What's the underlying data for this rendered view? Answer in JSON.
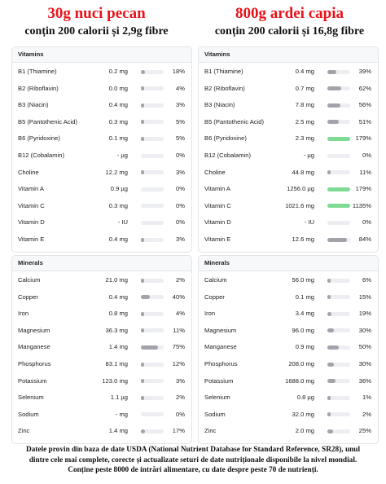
{
  "columns": [
    {
      "title": "30g nuci pecan",
      "subtitle": "conțin 200 calorii și 2,9g fibre",
      "sections": [
        {
          "title": "Vitamins",
          "rows": [
            {
              "name": "B1 (Thiamine)",
              "amount": "0.2 mg",
              "pct": 18,
              "pct_label": "18%"
            },
            {
              "name": "B2 (Riboflavin)",
              "amount": "0.0 mg",
              "pct": 4,
              "pct_label": "4%"
            },
            {
              "name": "B3 (Niacin)",
              "amount": "0.4 mg",
              "pct": 3,
              "pct_label": "3%"
            },
            {
              "name": "B5 (Pantothenic Acid)",
              "amount": "0.3 mg",
              "pct": 5,
              "pct_label": "5%"
            },
            {
              "name": "B6 (Pyridoxine)",
              "amount": "0.1 mg",
              "pct": 5,
              "pct_label": "5%"
            },
            {
              "name": "B12 (Cobalamin)",
              "amount": "- µg",
              "pct": 0,
              "pct_label": "0%"
            },
            {
              "name": "Choline",
              "amount": "12.2 mg",
              "pct": 3,
              "pct_label": "3%"
            },
            {
              "name": "Vitamin A",
              "amount": "0.9 µg",
              "pct": 0,
              "pct_label": "0%"
            },
            {
              "name": "Vitamin C",
              "amount": "0.3 mg",
              "pct": 0,
              "pct_label": "0%"
            },
            {
              "name": "Vitamin D",
              "amount": "- IU",
              "pct": 0,
              "pct_label": "0%"
            },
            {
              "name": "Vitamin E",
              "amount": "0.4 mg",
              "pct": 3,
              "pct_label": "3%"
            }
          ]
        },
        {
          "title": "Minerals",
          "rows": [
            {
              "name": "Calcium",
              "amount": "21.0 mg",
              "pct": 2,
              "pct_label": "2%"
            },
            {
              "name": "Copper",
              "amount": "0.4 mg",
              "pct": 40,
              "pct_label": "40%"
            },
            {
              "name": "Iron",
              "amount": "0.8 mg",
              "pct": 4,
              "pct_label": "4%"
            },
            {
              "name": "Magnesium",
              "amount": "36.3 mg",
              "pct": 11,
              "pct_label": "11%"
            },
            {
              "name": "Manganese",
              "amount": "1.4 mg",
              "pct": 75,
              "pct_label": "75%"
            },
            {
              "name": "Phosphorus",
              "amount": "83.1 mg",
              "pct": 12,
              "pct_label": "12%"
            },
            {
              "name": "Potassium",
              "amount": "123.0 mg",
              "pct": 3,
              "pct_label": "3%"
            },
            {
              "name": "Selenium",
              "amount": "1.1 µg",
              "pct": 2,
              "pct_label": "2%"
            },
            {
              "name": "Sodium",
              "amount": "- mg",
              "pct": 0,
              "pct_label": "0%"
            },
            {
              "name": "Zinc",
              "amount": "1.4 mg",
              "pct": 17,
              "pct_label": "17%"
            }
          ]
        }
      ]
    },
    {
      "title": "800g ardei capia",
      "subtitle": "conțin 200 calorii și 16,8g fibre",
      "sections": [
        {
          "title": "Vitamins",
          "rows": [
            {
              "name": "B1 (Thiamine)",
              "amount": "0.4 mg",
              "pct": 39,
              "pct_label": "39%"
            },
            {
              "name": "B2 (Riboflavin)",
              "amount": "0.7 mg",
              "pct": 62,
              "pct_label": "62%"
            },
            {
              "name": "B3 (Niacin)",
              "amount": "7.8 mg",
              "pct": 56,
              "pct_label": "56%"
            },
            {
              "name": "B5 (Pantothenic Acid)",
              "amount": "2.5 mg",
              "pct": 51,
              "pct_label": "51%"
            },
            {
              "name": "B6 (Pyridoxine)",
              "amount": "2.3 mg",
              "pct": 179,
              "pct_label": "179%"
            },
            {
              "name": "B12 (Cobalamin)",
              "amount": "- µg",
              "pct": 0,
              "pct_label": "0%"
            },
            {
              "name": "Choline",
              "amount": "44.8 mg",
              "pct": 11,
              "pct_label": "11%"
            },
            {
              "name": "Vitamin A",
              "amount": "1256.0 µg",
              "pct": 179,
              "pct_label": "179%"
            },
            {
              "name": "Vitamin C",
              "amount": "1021.6 mg",
              "pct": 1135,
              "pct_label": "1135%"
            },
            {
              "name": "Vitamin D",
              "amount": "- IU",
              "pct": 0,
              "pct_label": "0%"
            },
            {
              "name": "Vitamin E",
              "amount": "12.6 mg",
              "pct": 84,
              "pct_label": "84%"
            }
          ]
        },
        {
          "title": "Minerals",
          "rows": [
            {
              "name": "Calcium",
              "amount": "56.0 mg",
              "pct": 6,
              "pct_label": "6%"
            },
            {
              "name": "Copper",
              "amount": "0.1 mg",
              "pct": 15,
              "pct_label": "15%"
            },
            {
              "name": "Iron",
              "amount": "3.4 mg",
              "pct": 19,
              "pct_label": "19%"
            },
            {
              "name": "Magnesium",
              "amount": "96.0 mg",
              "pct": 30,
              "pct_label": "30%"
            },
            {
              "name": "Manganese",
              "amount": "0.9 mg",
              "pct": 50,
              "pct_label": "50%"
            },
            {
              "name": "Phosphorus",
              "amount": "208.0 mg",
              "pct": 30,
              "pct_label": "30%"
            },
            {
              "name": "Potassium",
              "amount": "1688.0 mg",
              "pct": 36,
              "pct_label": "36%"
            },
            {
              "name": "Selenium",
              "amount": "0.8 µg",
              "pct": 1,
              "pct_label": "1%"
            },
            {
              "name": "Sodium",
              "amount": "32.0 mg",
              "pct": 2,
              "pct_label": "2%"
            },
            {
              "name": "Zinc",
              "amount": "2.0 mg",
              "pct": 25,
              "pct_label": "25%"
            }
          ]
        }
      ]
    }
  ],
  "bar_color": "#a3a3ab",
  "over_color": "#7ddb93",
  "footer": [
    "Datele provin din baza de date USDA (National Nutrient Database for Standard Reference, SR28), unul",
    "dintre cele mai complete, corecte și actualizate seturi de date nutriționale disponibile la nivel mondial.",
    "Conține peste 8000 de intrări alimentare, cu date despre peste 70 de nutrienți."
  ]
}
